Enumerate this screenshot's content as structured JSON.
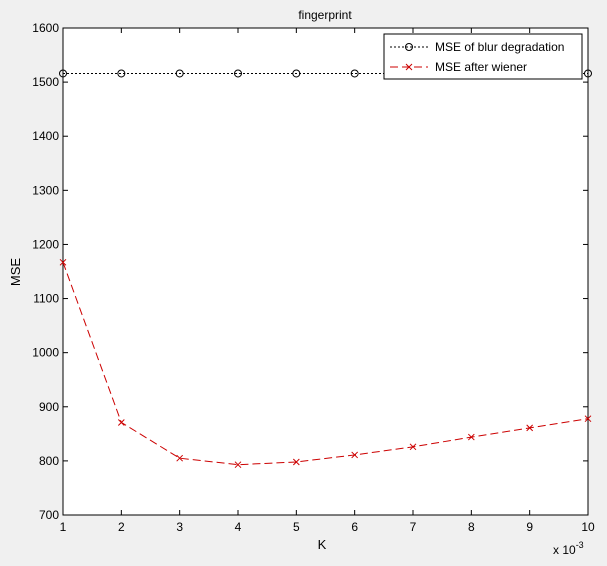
{
  "chart_data": {
    "type": "line",
    "title": "fingerprint",
    "xlabel": "K",
    "ylabel": "MSE",
    "x_multiplier": "x 10",
    "x_multiplier_exponent": "-3",
    "xlim": [
      1,
      10
    ],
    "ylim": [
      700,
      1600
    ],
    "x": [
      1,
      2,
      3,
      4,
      5,
      6,
      7,
      8,
      9,
      10
    ],
    "x_ticks": [
      "1",
      "2",
      "3",
      "4",
      "5",
      "6",
      "7",
      "8",
      "9",
      "10"
    ],
    "y_ticks": [
      "700",
      "800",
      "900",
      "1000",
      "1100",
      "1200",
      "1300",
      "1400",
      "1500",
      "1600"
    ],
    "grid": false,
    "legend_position": "top-right",
    "series": [
      {
        "name": "MSE of blur degradation",
        "values": [
          1516,
          1516,
          1516,
          1516,
          1516,
          1516,
          1516,
          1516,
          1516,
          1516
        ],
        "color": "#000000",
        "line_style": "dotted",
        "marker": "circle"
      },
      {
        "name": "MSE after wiener",
        "values": [
          1167,
          871,
          805,
          793,
          798,
          811,
          826,
          844,
          861,
          878
        ],
        "color": "#cc0000",
        "line_style": "dashed",
        "marker": "x"
      }
    ]
  }
}
